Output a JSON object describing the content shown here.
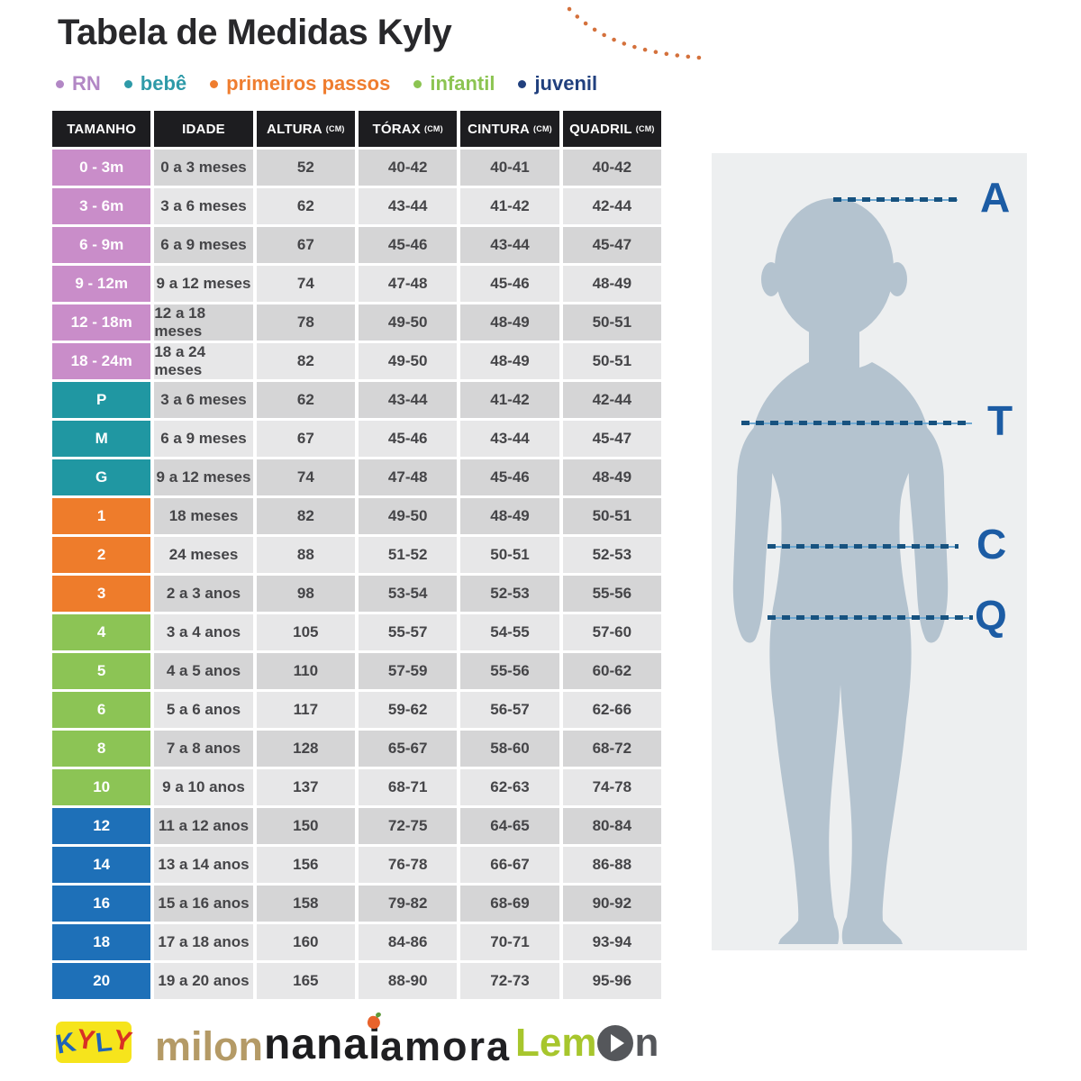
{
  "title": "Tabela de Medidas Kyly",
  "legend": {
    "items": [
      {
        "label": "RN",
        "color": "#b287c5"
      },
      {
        "label": "bebê",
        "color": "#2e9aa8"
      },
      {
        "label": "primeiros passos",
        "color": "#ef7d2f"
      },
      {
        "label": "infantil",
        "color": "#8cc452"
      },
      {
        "label": "juvenil",
        "color": "#21407e"
      }
    ]
  },
  "chart_data": {
    "type": "table",
    "title": "Tabela de Medidas Kyly",
    "columns": [
      "TAMANHO",
      "IDADE",
      "ALTURA (CM)",
      "TÓRAX (CM)",
      "CINTURA (CM)",
      "QUADRIL (CM)"
    ],
    "rows": [
      [
        "0 - 3m",
        "0 a 3 meses",
        "52",
        "40-42",
        "40-41",
        "40-42"
      ],
      [
        "3 - 6m",
        "3 a 6 meses",
        "62",
        "43-44",
        "41-42",
        "42-44"
      ],
      [
        "6 - 9m",
        "6 a 9 meses",
        "67",
        "45-46",
        "43-44",
        "45-47"
      ],
      [
        "9 - 12m",
        "9 a 12 meses",
        "74",
        "47-48",
        "45-46",
        "48-49"
      ],
      [
        "12 - 18m",
        "12 a 18 meses",
        "78",
        "49-50",
        "48-49",
        "50-51"
      ],
      [
        "18 - 24m",
        "18 a 24 meses",
        "82",
        "49-50",
        "48-49",
        "50-51"
      ],
      [
        "P",
        "3 a 6 meses",
        "62",
        "43-44",
        "41-42",
        "42-44"
      ],
      [
        "M",
        "6 a 9 meses",
        "67",
        "45-46",
        "43-44",
        "45-47"
      ],
      [
        "G",
        "9 a 12 meses",
        "74",
        "47-48",
        "45-46",
        "48-49"
      ],
      [
        "1",
        "18 meses",
        "82",
        "49-50",
        "48-49",
        "50-51"
      ],
      [
        "2",
        "24 meses",
        "88",
        "51-52",
        "50-51",
        "52-53"
      ],
      [
        "3",
        "2 a 3 anos",
        "98",
        "53-54",
        "52-53",
        "55-56"
      ],
      [
        "4",
        "3 a 4 anos",
        "105",
        "55-57",
        "54-55",
        "57-60"
      ],
      [
        "5",
        "4 a 5 anos",
        "110",
        "57-59",
        "55-56",
        "60-62"
      ],
      [
        "6",
        "5 a 6 anos",
        "117",
        "59-62",
        "56-57",
        "62-66"
      ],
      [
        "8",
        "7 a 8 anos",
        "128",
        "65-67",
        "58-60",
        "68-72"
      ],
      [
        "10",
        "9 a 10 anos",
        "137",
        "68-71",
        "62-63",
        "74-78"
      ],
      [
        "12",
        "11 a 12 anos",
        "150",
        "72-75",
        "64-65",
        "80-84"
      ],
      [
        "14",
        "13 a 14 anos",
        "156",
        "76-78",
        "66-67",
        "86-88"
      ],
      [
        "16",
        "15 a 16 anos",
        "158",
        "79-82",
        "68-69",
        "90-92"
      ],
      [
        "18",
        "17 a 18 anos",
        "160",
        "84-86",
        "70-71",
        "93-94"
      ],
      [
        "20",
        "19 a 20 anos",
        "165",
        "88-90",
        "72-73",
        "95-96"
      ]
    ],
    "row_groups": [
      "rn",
      "rn",
      "rn",
      "rn",
      "rn",
      "rn",
      "bebe",
      "bebe",
      "bebe",
      "primeiros-passos",
      "primeiros-passos",
      "primeiros-passos",
      "infantil",
      "infantil",
      "infantil",
      "infantil",
      "infantil",
      "juvenil",
      "juvenil",
      "juvenil",
      "juvenil",
      "juvenil"
    ],
    "group_colors": {
      "rn": "#c98dc9",
      "bebe": "#2097a2",
      "primeiros-passos": "#ee7c2b",
      "infantil": "#8cc455",
      "juvenil": "#1e70b8"
    }
  },
  "figure": {
    "lines": [
      "A",
      "T",
      "C",
      "Q"
    ],
    "label_color": "#1c5ca4",
    "silhouette_color": "#b4c3cf",
    "panel_color": "#edeff0"
  },
  "brands": {
    "kyly": {
      "bg": "#f6e41c",
      "letters": [
        {
          "ch": "K",
          "color": "#1f64b8"
        },
        {
          "ch": "Y",
          "color": "#d93025"
        },
        {
          "ch": "L",
          "color": "#1f64b8"
        },
        {
          "ch": "Y",
          "color": "#d93025"
        }
      ]
    },
    "milon": {
      "text": "milon",
      "color": "#b49a66"
    },
    "nanai": {
      "prefix": "nana",
      "i": "i",
      "color": "#1d1d1f",
      "dot_color": "#e8632c"
    },
    "amora": {
      "text": "amora",
      "color": "#202023"
    },
    "lemon": {
      "prefix": "Lem",
      "suffix": "n",
      "green": "#a7c62d",
      "gray": "#55575b"
    }
  }
}
